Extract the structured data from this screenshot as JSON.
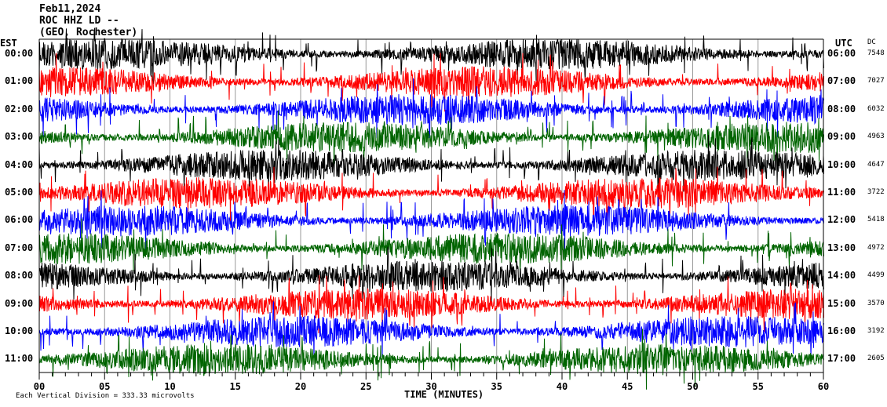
{
  "header": {
    "date": "Feb11,2024",
    "station": "ROC HHZ LD --",
    "location": "(GEO, Rochester)"
  },
  "left_zone": "EST",
  "right_zone": "UTC",
  "dc_header": "DC",
  "chart_data": {
    "type": "line",
    "xlabel": "TIME (MINUTES)",
    "xlim": [
      0,
      60
    ],
    "x_ticks": [
      "00",
      "05",
      "10",
      "15",
      "20",
      "25",
      "30",
      "35",
      "40",
      "45",
      "50",
      "55",
      "60"
    ],
    "colors": [
      "#000000",
      "#ff0000",
      "#0000ff",
      "#006400"
    ],
    "rows": [
      {
        "est": "00:00",
        "utc": "06:00",
        "dc": "7548"
      },
      {
        "est": "01:00",
        "utc": "07:00",
        "dc": "7027"
      },
      {
        "est": "02:00",
        "utc": "08:00",
        "dc": "6032"
      },
      {
        "est": "03:00",
        "utc": "09:00",
        "dc": "4963"
      },
      {
        "est": "04:00",
        "utc": "10:00",
        "dc": "4647"
      },
      {
        "est": "05:00",
        "utc": "11:00",
        "dc": "3722"
      },
      {
        "est": "06:00",
        "utc": "12:00",
        "dc": "5418"
      },
      {
        "est": "07:00",
        "utc": "13:00",
        "dc": "4972"
      },
      {
        "est": "08:00",
        "utc": "14:00",
        "dc": "4499"
      },
      {
        "est": "09:00",
        "utc": "15:00",
        "dc": "3570"
      },
      {
        "est": "10:00",
        "utc": "16:00",
        "dc": "3192"
      },
      {
        "est": "11:00",
        "utc": "17:00",
        "dc": "2605"
      }
    ]
  },
  "footer": {
    "scale": "Each Vertical Division = 333.33 microvolts"
  }
}
